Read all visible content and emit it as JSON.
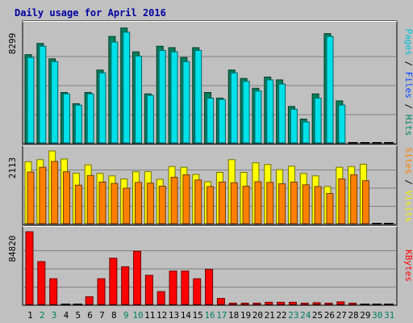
{
  "chart_data": {
    "type": "bar",
    "title": "Daily usage for April 2016",
    "days": [
      "1",
      "2",
      "3",
      "4",
      "5",
      "6",
      "7",
      "8",
      "9",
      "10",
      "11",
      "12",
      "13",
      "14",
      "15",
      "16",
      "17",
      "18",
      "19",
      "20",
      "21",
      "22",
      "23",
      "24",
      "25",
      "26",
      "27",
      "28",
      "29",
      "30",
      "31"
    ],
    "weekend_days": [
      "2",
      "3",
      "9",
      "10",
      "16",
      "17",
      "23",
      "24",
      "30",
      "31"
    ],
    "panels": [
      {
        "name": "hits-panel",
        "ymax": 8299,
        "ymax_label": "8299",
        "right_label": [
          {
            "text": "Pages",
            "color": "#00C0D0"
          },
          {
            "text": " / ",
            "color": "#000000"
          },
          {
            "text": "Files",
            "color": "#0040FF"
          },
          {
            "text": " / ",
            "color": "#000000"
          },
          {
            "text": "Hits",
            "color": "#00805C"
          }
        ],
        "series": [
          {
            "name": "Hits",
            "color": "#00805C",
            "values": [
              6300,
              7100,
              6000,
              3600,
              2800,
              3600,
              5200,
              7600,
              8200,
              6500,
              3500,
              6900,
              6800,
              6100,
              6800,
              3600,
              3200,
              5200,
              4600,
              3900,
              4700,
              4500,
              2600,
              1700,
              3500,
              7800,
              3000,
              0,
              0,
              0,
              0
            ]
          },
          {
            "name": "Files",
            "color": "#0040FF",
            "values": [
              3100,
              3500,
              3000,
              1800,
              1400,
              1800,
              2600,
              3800,
              4100,
              3200,
              1700,
              3400,
              3400,
              3000,
              3400,
              1800,
              1600,
              2600,
              2300,
              1900,
              2300,
              2200,
              1300,
              800,
              1700,
              3900,
              1500,
              0,
              0,
              0,
              0
            ]
          },
          {
            "name": "Pages",
            "color": "#00E0E8",
            "values": [
              6100,
              6900,
              5800,
              3500,
              2700,
              3500,
              5000,
              7200,
              7900,
              6200,
              3400,
              6600,
              6500,
              5800,
              6600,
              3200,
              3100,
              5000,
              4400,
              3700,
              4500,
              4200,
              2400,
              1500,
              3200,
              7600,
              2700,
              0,
              0,
              0,
              0
            ]
          }
        ]
      },
      {
        "name": "visits-panel",
        "ymax": 2113,
        "ymax_label": "2113",
        "right_label": [
          {
            "text": "Sites",
            "color": "#FF8000"
          },
          {
            "text": " / ",
            "color": "#000000"
          },
          {
            "text": "Visits",
            "color": "#F0F000"
          }
        ],
        "series": [
          {
            "name": "Visits",
            "color": "#FFFF00",
            "values": [
              1800,
              1860,
              2113,
              1880,
              1470,
              1710,
              1460,
              1390,
              1300,
              1510,
              1510,
              1290,
              1660,
              1640,
              1430,
              1220,
              1490,
              1860,
              1490,
              1770,
              1720,
              1570,
              1670,
              1460,
              1390,
              1080,
              1640,
              1660,
              1730,
              0,
              0
            ]
          },
          {
            "name": "Sites",
            "color": "#FF8000",
            "values": [
              1500,
              1640,
              1810,
              1510,
              1120,
              1400,
              1210,
              1170,
              1030,
              1200,
              1180,
              1090,
              1350,
              1420,
              1270,
              1080,
              1210,
              1190,
              1090,
              1220,
              1200,
              1160,
              1210,
              1130,
              1080,
              880,
              1300,
              1420,
              1250,
              0,
              0
            ]
          }
        ]
      },
      {
        "name": "kbytes-panel",
        "ymax": 84820,
        "ymax_label": "84820",
        "right_label": [
          {
            "text": "KBytes",
            "color": "#FF0000"
          }
        ],
        "series": [
          {
            "name": "KBytes",
            "color": "#FF0000",
            "values": [
              84820,
              50000,
              30000,
              0,
              0,
              9000,
              30000,
              54000,
              44000,
              62000,
              34000,
              15000,
              39000,
              39000,
              30000,
              41000,
              7000,
              1500,
              1500,
              1500,
              2500,
              2500,
              2500,
              1500,
              2000,
              1500,
              3000,
              1500,
              0,
              0,
              0
            ]
          }
        ]
      }
    ]
  }
}
